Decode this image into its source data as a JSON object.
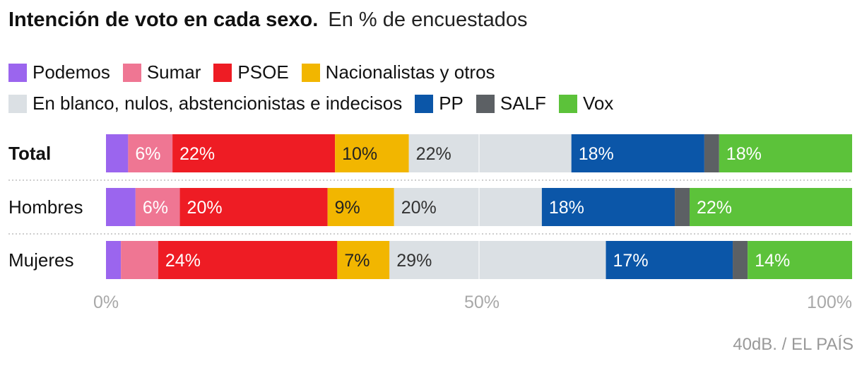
{
  "title": "Intención de voto en cada sexo.",
  "subtitle": "En % de encuestados",
  "source": "40dB. / EL PAÍS",
  "chart_data": {
    "type": "bar",
    "orientation": "horizontal",
    "stacked": true,
    "title": "Intención de voto en cada sexo.",
    "subtitle": "En % de encuestados",
    "categories": [
      "Total",
      "Hombres",
      "Mujeres"
    ],
    "category_bold": [
      true,
      false,
      false
    ],
    "xlim": [
      0,
      100
    ],
    "xticks": [
      0,
      50,
      100
    ],
    "xtick_labels": [
      "0%",
      "50%",
      "100%"
    ],
    "legend_position": "top",
    "series": [
      {
        "name": "Podemos",
        "color": "#9b65ee",
        "values": [
          3,
          4,
          2
        ],
        "labels": [
          "",
          "",
          ""
        ],
        "label_color": "#ffffff"
      },
      {
        "name": "Sumar",
        "color": "#ef7693",
        "values": [
          6,
          6,
          5
        ],
        "labels": [
          "6%",
          "6%",
          ""
        ],
        "label_color": "#ffffff"
      },
      {
        "name": "PSOE",
        "color": "#ee1c24",
        "values": [
          22,
          20,
          24
        ],
        "labels": [
          "22%",
          "20%",
          "24%"
        ],
        "label_color": "#ffffff"
      },
      {
        "name": "Nacionalistas y otros",
        "color": "#f2b600",
        "values": [
          10,
          9,
          7
        ],
        "labels": [
          "10%",
          "9%",
          "7%"
        ],
        "label_color": "#222222"
      },
      {
        "name": "En blanco, nulos, abstencionistas e indecisos",
        "color": "#dbe0e4",
        "values": [
          22,
          20,
          29
        ],
        "labels": [
          "22%",
          "20%",
          "29%"
        ],
        "label_color": "#333333"
      },
      {
        "name": "PP",
        "color": "#0b56a8",
        "values": [
          18,
          18,
          17
        ],
        "labels": [
          "18%",
          "18%",
          "17%"
        ],
        "label_color": "#ffffff"
      },
      {
        "name": "SALF",
        "color": "#5c6064",
        "values": [
          2,
          2,
          2
        ],
        "labels": [
          "",
          "",
          ""
        ],
        "label_color": "#ffffff"
      },
      {
        "name": "Vox",
        "color": "#5cc23a",
        "values": [
          18,
          22,
          14
        ],
        "labels": [
          "18%",
          "22%",
          "14%"
        ],
        "label_color": "#ffffff"
      }
    ]
  }
}
